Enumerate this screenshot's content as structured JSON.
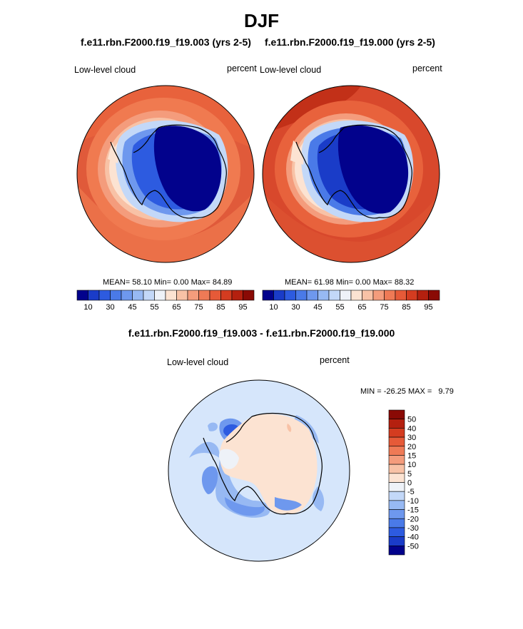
{
  "figure": {
    "title": "DJF",
    "diff_title": "f.e11.rbn.F2000.f19_f19.003 - f.e11.rbn.F2000.f19_f19.000"
  },
  "panels": [
    {
      "case": "f.e11.rbn.F2000.f19_f19.003 (yrs 2-5)",
      "left_label": "Low-level cloud",
      "right_label": "percent",
      "mean_label": "MEAN=",
      "mean": "58.10",
      "min_label": "Min=",
      "min": "0.00",
      "max_label": "Max=",
      "max": "84.89",
      "ring": "#f07a50",
      "outer": "#e05a3a"
    },
    {
      "case": "f.e11.rbn.F2000.f19_f19.000 (yrs 2-5)",
      "left_label": "Low-level cloud",
      "right_label": "percent",
      "mean_label": "MEAN=",
      "mean": "61.98",
      "min_label": "Min=",
      "min": "0.00",
      "max_label": "Max=",
      "max": "88.32",
      "ring": "#e8623c",
      "outer": "#d8482c"
    }
  ],
  "colorbar_abs": {
    "colors": [
      "#02028c",
      "#1a3cc8",
      "#2d5be0",
      "#4a7ae8",
      "#6e98ee",
      "#97b9f3",
      "#c3d8f8",
      "#eef2f8",
      "#fce3d2",
      "#f8c2a6",
      "#f49c7c",
      "#ef7a56",
      "#e65a38",
      "#d43c20",
      "#b4200f",
      "#8a0a05"
    ],
    "labels": [
      "10",
      "30",
      "45",
      "55",
      "65",
      "75",
      "85",
      "95"
    ]
  },
  "diff_panel": {
    "left_label": "Low-level cloud",
    "right_label": "percent",
    "min_max_text": "MIN = -26.25 MAX =   9.79",
    "background": "#d6e6fb"
  },
  "colorbar_diff": {
    "colors": [
      "#8a0a05",
      "#b4200f",
      "#d43c20",
      "#e65a38",
      "#ef7a56",
      "#f49c7c",
      "#f8c2a6",
      "#fce3d2",
      "#eef2f8",
      "#c3d8f8",
      "#97b9f3",
      "#6e98ee",
      "#4a7ae8",
      "#2d5be0",
      "#1a3cc8",
      "#02028c"
    ],
    "labels": [
      "50",
      "40",
      "30",
      "20",
      "15",
      "10",
      "5",
      "0",
      "-5",
      "-10",
      "-15",
      "-20",
      "-30",
      "-40",
      "-50"
    ]
  }
}
